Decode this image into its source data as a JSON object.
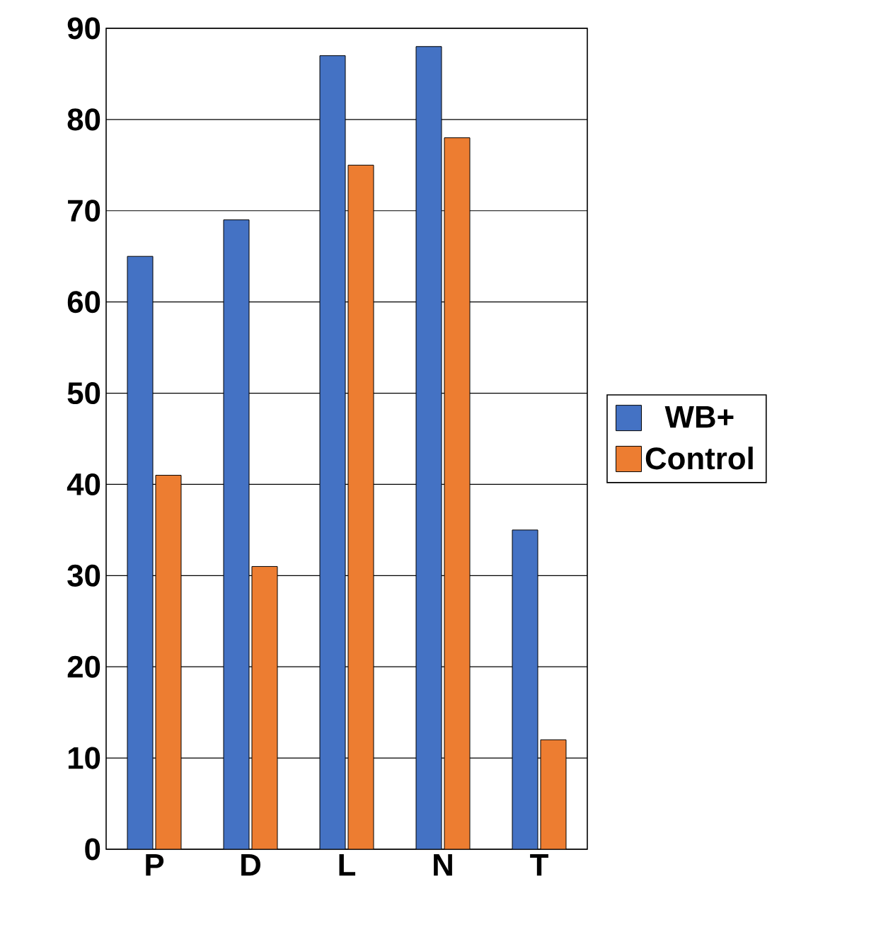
{
  "chart_data": {
    "type": "bar",
    "categories": [
      "P",
      "D",
      "L",
      "N",
      "T"
    ],
    "series": [
      {
        "name": "WB+",
        "color": "#4472c4",
        "values": [
          65,
          69,
          87,
          88,
          35
        ]
      },
      {
        "name": "Control",
        "color": "#ed7d31",
        "values": [
          41,
          31,
          75,
          78,
          12
        ]
      }
    ],
    "ylim": [
      0,
      90
    ],
    "yticks": [
      0,
      10,
      20,
      30,
      40,
      50,
      60,
      70,
      80,
      90
    ],
    "grid": "y",
    "legend": "right"
  }
}
